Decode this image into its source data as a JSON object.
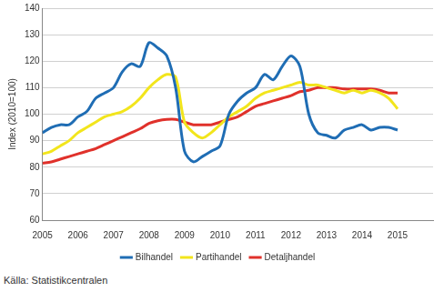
{
  "chart_data": {
    "type": "line",
    "y_label": "Index (2010=100)",
    "source": "Källa: Statistikcentralen",
    "x": [
      2005,
      2005.25,
      2005.5,
      2005.75,
      2006,
      2006.25,
      2006.5,
      2006.75,
      2007,
      2007.25,
      2007.5,
      2007.75,
      2008,
      2008.25,
      2008.5,
      2008.75,
      2009,
      2009.25,
      2009.5,
      2009.75,
      2010,
      2010.25,
      2010.5,
      2010.75,
      2011,
      2011.25,
      2011.5,
      2011.75,
      2012,
      2012.25,
      2012.5,
      2012.75,
      2013,
      2013.25,
      2013.5,
      2013.75,
      2014,
      2014.25,
      2014.5,
      2014.75,
      2015
    ],
    "series": [
      {
        "name": "Bilhandel",
        "color": "#1f6db4",
        "values": [
          93,
          95,
          96,
          96,
          99,
          101,
          106,
          108,
          110,
          116,
          119,
          118,
          127,
          125,
          122,
          110,
          86,
          82,
          84,
          86,
          88,
          100,
          105,
          108,
          110,
          115,
          113,
          118,
          122,
          118,
          100,
          93,
          92,
          91,
          94,
          95,
          96,
          94,
          95,
          95,
          94
        ]
      },
      {
        "name": "Partihandel",
        "color": "#f2e51c",
        "values": [
          85,
          86,
          88,
          90,
          93,
          95,
          97,
          99,
          100,
          101,
          103,
          106,
          110,
          113,
          115,
          114,
          97,
          93,
          91,
          93,
          96,
          99,
          101,
          103,
          106,
          108,
          109,
          110,
          111,
          112,
          111,
          111,
          110,
          109,
          108,
          109,
          108,
          109,
          108,
          106,
          102
        ]
      },
      {
        "name": "Detaljhandel",
        "color": "#e0312b",
        "values": [
          81.5,
          82,
          83,
          84,
          85,
          86,
          87,
          88.5,
          90,
          91.5,
          93,
          94.5,
          96.5,
          97.5,
          98,
          98,
          97,
          96,
          96,
          96,
          97,
          98,
          99,
          101,
          103,
          104,
          105,
          106,
          107,
          108.5,
          109,
          110,
          110,
          110,
          109.5,
          109.5,
          109.5,
          109.5,
          109,
          108,
          108
        ]
      }
    ],
    "xlim": [
      2005,
      2016
    ],
    "xticks": [
      2005,
      2006,
      2007,
      2008,
      2009,
      2010,
      2011,
      2012,
      2013,
      2014,
      2015
    ],
    "ylim": [
      60,
      140
    ],
    "yticks": [
      60,
      70,
      80,
      90,
      100,
      110,
      120,
      130,
      140
    ],
    "grid": true,
    "legend": "bottom"
  }
}
